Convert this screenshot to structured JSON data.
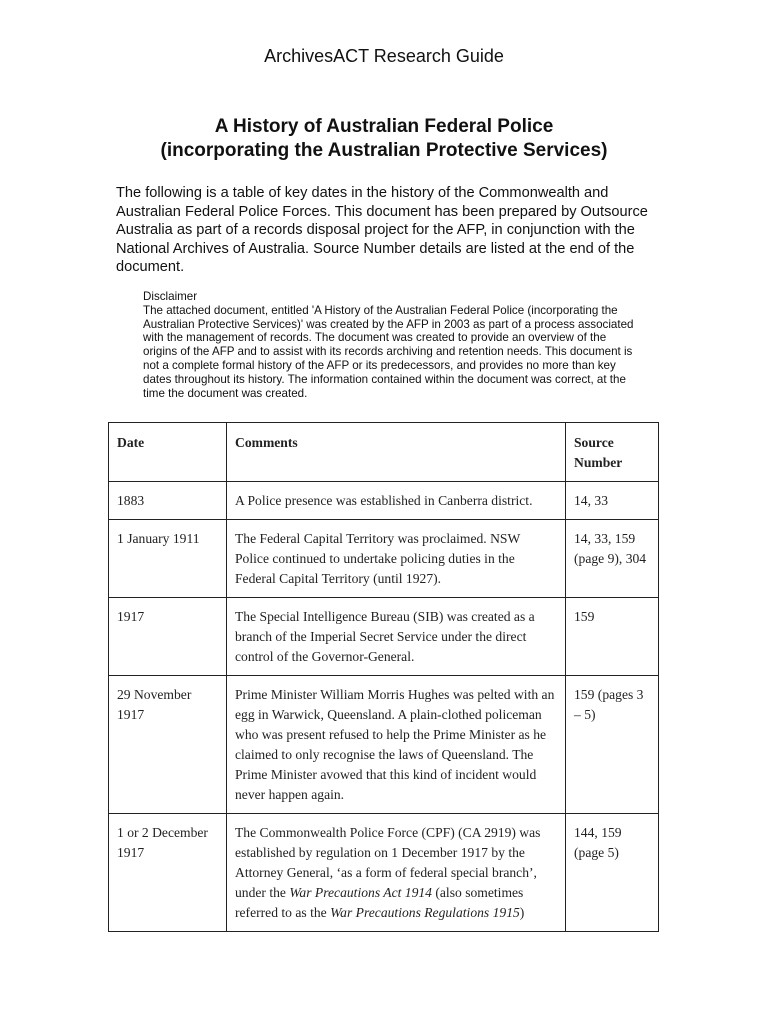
{
  "header": {
    "guide": "ArchivesACT Research Guide",
    "title_line1": "A History of Australian Federal Police",
    "title_line2": "(incorporating the Australian Protective Services)"
  },
  "intro": "The following is a table of key dates in the history of the Commonwealth and Australian Federal Police Forces. This document has been prepared by Outsource Australia as part of a records disposal project for the AFP, in conjunction with the National Archives of Australia. Source Number details are listed at the end of the document.",
  "disclaimer": {
    "heading": "Disclaimer",
    "text": "The attached document, entitled 'A History of the Australian Federal Police (incorporating the Australian Protective Services)' was created by the AFP in 2003 as part of a process associated with the management of records.  The document was created to provide an overview of the origins of the AFP and to assist with its records archiving and retention needs.  This document is not a complete formal history of the AFP or its predecessors, and provides no more than key dates throughout its history.  The information contained within the document was correct, at the time the document was created."
  },
  "table": {
    "headers": [
      "Date",
      "Comments",
      "Source Number"
    ],
    "rows": [
      {
        "date": "1883",
        "comments": "A Police presence was established in Canberra district.",
        "source": "14, 33"
      },
      {
        "date": "1 January 1911",
        "comments": "The Federal Capital Territory was proclaimed. NSW Police continued to undertake policing duties in the Federal Capital Territory (until 1927).",
        "source": "14, 33, 159 (page 9), 304"
      },
      {
        "date": "1917",
        "comments": "The Special Intelligence Bureau (SIB) was created as a branch of the Imperial Secret Service under the direct control of the Governor-General.",
        "source": "159"
      },
      {
        "date": "29 November 1917",
        "comments": "Prime Minister William Morris Hughes was pelted with an egg in Warwick, Queensland. A plain-clothed policeman who was present refused to help the Prime Minister as he claimed to only recognise the laws of Queensland. The Prime Minister avowed that this kind of incident would never happen again.",
        "source": "159 (pages 3 – 5)"
      },
      {
        "date": "1 or 2 December 1917",
        "comments_parts": [
          "The Commonwealth Police Force (CPF) (CA 2919) was established by regulation on 1 December 1917 by the Attorney General, ‘as a form of federal special branch’, under the ",
          "War Precautions Act 1914",
          " (also sometimes referred to as the ",
          "War Precautions Regulations 1915",
          ")"
        ],
        "source": "144, 159 (page 5)"
      }
    ]
  }
}
